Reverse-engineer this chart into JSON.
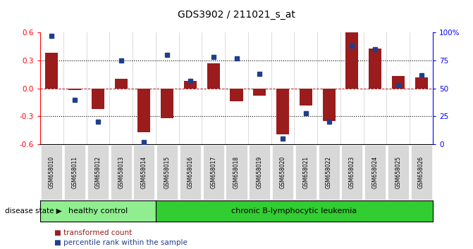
{
  "title": "GDS3902 / 211021_s_at",
  "samples": [
    "GSM658010",
    "GSM658011",
    "GSM658012",
    "GSM658013",
    "GSM658014",
    "GSM658015",
    "GSM658016",
    "GSM658017",
    "GSM658018",
    "GSM658019",
    "GSM658020",
    "GSM658021",
    "GSM658022",
    "GSM658023",
    "GSM658024",
    "GSM658025",
    "GSM658026"
  ],
  "bar_values": [
    0.38,
    -0.02,
    -0.22,
    0.1,
    -0.47,
    -0.32,
    0.08,
    0.27,
    -0.14,
    -0.08,
    -0.49,
    -0.18,
    -0.35,
    0.6,
    0.43,
    0.13,
    0.12
  ],
  "percentile_values": [
    97,
    40,
    20,
    75,
    2,
    80,
    57,
    78,
    77,
    63,
    5,
    28,
    20,
    88,
    85,
    53,
    62
  ],
  "bar_color": "#9B1C1C",
  "dot_color": "#1F3E8C",
  "healthy_count": 5,
  "group1_label": "healthy control",
  "group2_label": "chronic B-lymphocytic leukemia",
  "group1_color": "#90EE90",
  "group2_color": "#32CD32",
  "ylim": [
    -0.6,
    0.6
  ],
  "yticks_left": [
    -0.6,
    -0.3,
    0.0,
    0.3,
    0.6
  ],
  "yticks_right": [
    0,
    25,
    50,
    75,
    100
  ],
  "dotted_lines": [
    -0.3,
    0.3
  ],
  "legend_bar_label": "transformed count",
  "legend_dot_label": "percentile rank within the sample",
  "disease_state_label": "disease state",
  "background_color": "#FFFFFF"
}
